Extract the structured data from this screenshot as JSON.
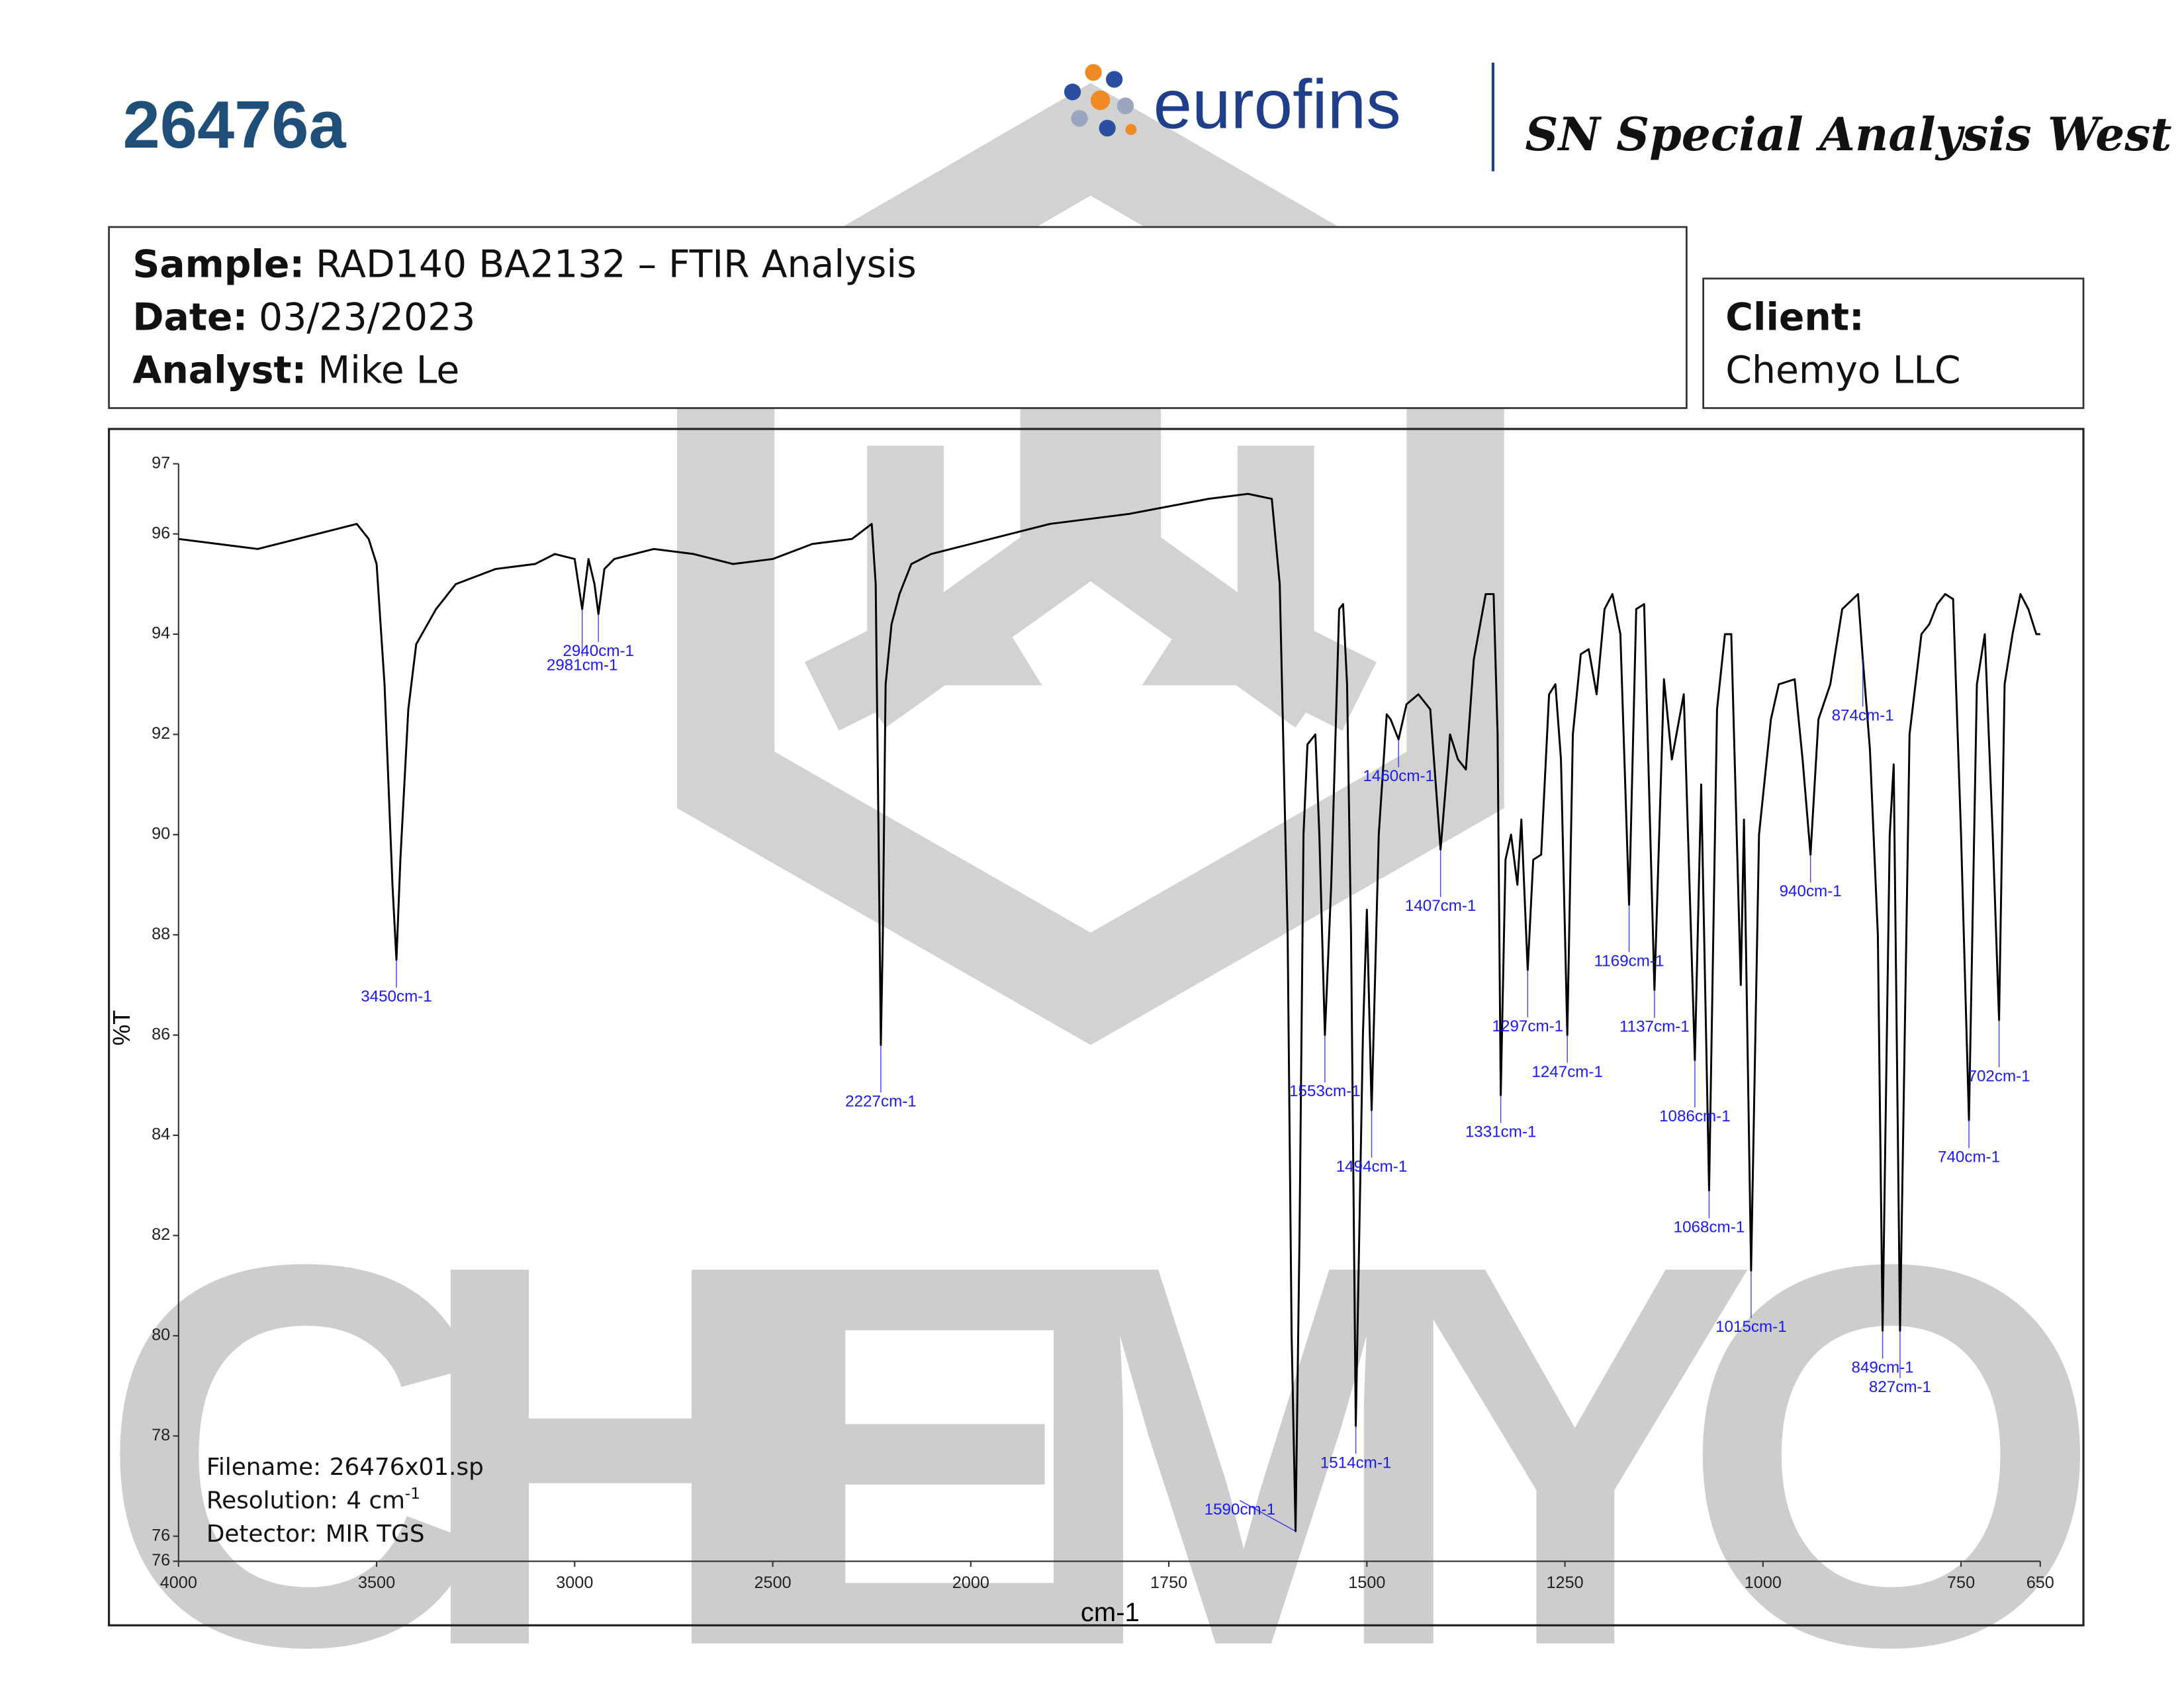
{
  "header": {
    "title": "26476a",
    "brand": "eurofins",
    "division": "SN Special Analysis West"
  },
  "sample": {
    "sample_label": "Sample:",
    "sample": "RAD140 BA2132 – FTIR Analysis",
    "date_label": "Date:",
    "date": "03/23/2023",
    "analyst_label": "Analyst:",
    "analyst": "Mike Le"
  },
  "client": {
    "label": "Client:",
    "name": "Chemyo LLC"
  },
  "watermark": "CHEMYO",
  "info": {
    "filename_label": "Filename:",
    "filename": "26476x01.sp",
    "resolution_label": "Resolution:",
    "resolution": "4 cm",
    "resolution_exp": "-1",
    "detector_label": "Detector:",
    "detector": "MIR TGS"
  },
  "chart_data": {
    "type": "line",
    "ylabel": "%T",
    "xlabel": "cm-1",
    "color": "#000000",
    "peak_color": "#1a1aee",
    "xlim": [
      4000,
      650
    ],
    "x_expansion": {
      "from": 2000,
      "factor": 2
    },
    "xticks": [
      4000,
      3500,
      3000,
      2500,
      2000,
      1750,
      1500,
      1250,
      1000,
      750,
      650
    ],
    "ylim": [
      75.5,
      97.4
    ],
    "yticks": [
      {
        "value": 75.5,
        "label": "76"
      },
      76,
      78,
      80,
      82,
      84,
      86,
      88,
      90,
      92,
      94,
      96,
      {
        "value": 97.4,
        "label": "97"
      }
    ],
    "x": [
      4000,
      3900,
      3800,
      3700,
      3600,
      3550,
      3520,
      3500,
      3480,
      3460,
      3450,
      3440,
      3420,
      3400,
      3350,
      3300,
      3200,
      3100,
      3050,
      3000,
      2981,
      2965,
      2950,
      2940,
      2925,
      2900,
      2800,
      2700,
      2600,
      2500,
      2400,
      2300,
      2250,
      2240,
      2230,
      2227,
      2222,
      2215,
      2200,
      2180,
      2150,
      2100,
      2050,
      2000,
      1900,
      1800,
      1700,
      1650,
      1620,
      1610,
      1600,
      1595,
      1590,
      1585,
      1580,
      1575,
      1565,
      1560,
      1553,
      1545,
      1535,
      1530,
      1525,
      1520,
      1514,
      1505,
      1500,
      1494,
      1485,
      1475,
      1470,
      1460,
      1450,
      1435,
      1420,
      1407,
      1395,
      1385,
      1375,
      1365,
      1350,
      1340,
      1335,
      1331,
      1325,
      1318,
      1310,
      1305,
      1297,
      1290,
      1280,
      1270,
      1262,
      1255,
      1247,
      1240,
      1230,
      1220,
      1210,
      1200,
      1190,
      1180,
      1169,
      1160,
      1150,
      1137,
      1125,
      1115,
      1100,
      1086,
      1078,
      1068,
      1058,
      1048,
      1040,
      1028,
      1024,
      1015,
      1005,
      990,
      980,
      960,
      950,
      940,
      930,
      915,
      900,
      880,
      874,
      865,
      855,
      849,
      840,
      835,
      827,
      815,
      800,
      790,
      780,
      770,
      760,
      750,
      740,
      730,
      720,
      710,
      702,
      695,
      685,
      675,
      665,
      655,
      650
    ],
    "values": [
      95.9,
      95.8,
      95.7,
      95.9,
      96.1,
      96.2,
      95.9,
      95.4,
      93,
      89,
      87.5,
      89.5,
      92.5,
      93.8,
      94.5,
      95.0,
      95.3,
      95.4,
      95.6,
      95.5,
      94.5,
      95.5,
      95.0,
      94.4,
      95.3,
      95.5,
      95.7,
      95.6,
      95.4,
      95.5,
      95.8,
      95.9,
      96.2,
      95,
      88,
      85.8,
      88,
      93,
      94.2,
      94.8,
      95.4,
      95.6,
      95.7,
      95.8,
      96.2,
      96.4,
      96.7,
      96.8,
      96.7,
      95,
      88,
      80,
      76.1,
      82,
      90,
      91.8,
      92,
      90,
      86,
      89,
      94.5,
      94.6,
      93,
      88,
      78.2,
      86,
      88.5,
      84.5,
      90,
      92.4,
      92.3,
      91.9,
      92.6,
      92.8,
      92.5,
      89.7,
      92,
      91.5,
      91.3,
      93.5,
      94.8,
      94.8,
      92,
      84.8,
      89.5,
      90,
      89,
      90.3,
      87.3,
      89.5,
      89.6,
      92.8,
      93,
      91.5,
      86,
      92,
      93.6,
      93.7,
      92.8,
      94.5,
      94.8,
      94,
      88.6,
      94.5,
      94.6,
      86.9,
      93.1,
      91.5,
      92.8,
      85.5,
      91,
      82.9,
      92.5,
      94,
      94,
      87,
      90.3,
      81.3,
      90,
      92.3,
      93,
      93.1,
      91.5,
      89.6,
      92.3,
      93,
      94.5,
      94.8,
      93.5,
      91.7,
      88,
      80.1,
      90,
      91.4,
      80.1,
      92,
      94,
      94.2,
      94.6,
      94.8,
      94.7,
      90,
      84.3,
      93,
      94,
      90,
      86.3,
      93,
      94,
      94.8,
      94.5,
      94,
      94
    ],
    "peaks": [
      {
        "x": 3450,
        "y": 87.5,
        "label": "3450cm-1"
      },
      {
        "x": 2981,
        "y": 94.5,
        "label": "2981cm-1"
      },
      {
        "x": 2940,
        "y": 94.4,
        "label": "2940cm-1"
      },
      {
        "x": 2227,
        "y": 85.8,
        "label": "2227cm-1"
      },
      {
        "x": 1590,
        "y": 76.1,
        "label": "1590cm-1"
      },
      {
        "x": 1553,
        "y": 86,
        "label": "1553cm-1"
      },
      {
        "x": 1514,
        "y": 78.2,
        "label": "1514cm-1"
      },
      {
        "x": 1494,
        "y": 84.5,
        "label": "1494cm-1"
      },
      {
        "x": 1460,
        "y": 91.9,
        "label": "1460cm-1"
      },
      {
        "x": 1407,
        "y": 89.7,
        "label": "1407cm-1"
      },
      {
        "x": 1331,
        "y": 84.8,
        "label": "1331cm-1"
      },
      {
        "x": 1297,
        "y": 87.3,
        "label": "1297cm-1"
      },
      {
        "x": 1247,
        "y": 86,
        "label": "1247cm-1"
      },
      {
        "x": 1169,
        "y": 88.6,
        "label": "1169cm-1"
      },
      {
        "x": 1137,
        "y": 86.9,
        "label": "1137cm-1"
      },
      {
        "x": 1086,
        "y": 85.5,
        "label": "1086cm-1"
      },
      {
        "x": 1068,
        "y": 82.9,
        "label": "1068cm-1"
      },
      {
        "x": 1015,
        "y": 81.3,
        "label": "1015cm-1"
      },
      {
        "x": 940,
        "y": 89.6,
        "label": "940cm-1"
      },
      {
        "x": 874,
        "y": 93.5,
        "label": "874cm-1"
      },
      {
        "x": 849,
        "y": 80.1,
        "label": "849cm-1"
      },
      {
        "x": 827,
        "y": 80.1,
        "label": "827cm-1"
      },
      {
        "x": 740,
        "y": 84.3,
        "label": "740cm-1"
      },
      {
        "x": 702,
        "y": 86.3,
        "label": "702cm-1"
      }
    ]
  }
}
